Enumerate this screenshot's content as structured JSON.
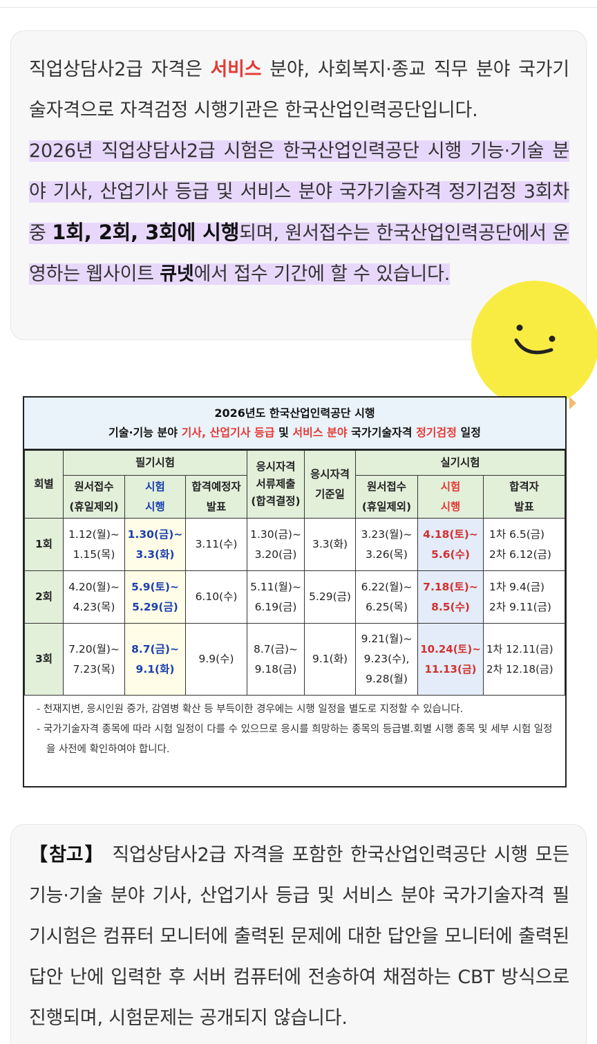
{
  "intro": {
    "p1_a": "직업상담사2급 자격은 ",
    "p1_service": "서비스",
    "p1_b": " 분야, 사회복지·종교 직무 분야 국가기술자격으로 자격검정 시행기관은 한국산업인력공단입니다.",
    "p2_a": "2026년 직업상담사2급 시험은 한국산업인력공단 시행 기능·기술 분야 기사, 산업기사 등급 및 서비스 분야 국가기술자격 정기검정 3회차 중 ",
    "p2_rounds": "1회, 2회, 3회에 시행",
    "p2_b": "되며, 원서접수는 한국산업인력공단에서 운영하는 웹사이트 ",
    "p2_site": "큐넷",
    "p2_c": "에서 접수 기간에 할 수 있습니다."
  },
  "schedule": {
    "title1_a": "2026년도 한국산업인력공단 시행",
    "title2_a": "기술·기능 분야 ",
    "title2_r1": "기사, 산업기사 등급",
    "title2_b": " 및 ",
    "title2_r2": "서비스 분야",
    "title2_c": " 국가기술자격 ",
    "title2_r3": "정기검정",
    "title2_d": " 일정",
    "headers": {
      "round": "회별",
      "written": "필기시험",
      "written_apply": "원서접수\n(휴일제외)",
      "written_exam": "시험\n시행",
      "written_result": "합격예정자\n발표",
      "docs": "응시자격\n서류제출\n(합격결정)",
      "baseline": "응시자격\n기준일",
      "practical": "실기시험",
      "prac_apply": "원서접수\n(휴일제외)",
      "prac_exam": "시험\n시행",
      "prac_result": "합격자\n발표"
    },
    "rows": [
      {
        "round": "1회",
        "written_apply": "1.12(월)~\n1.15(목)",
        "written_exam": "1.30(금)~\n3.3(화)",
        "written_result": "3.11(수)",
        "docs": "1.30(금)~\n3.20(금)",
        "baseline": "3.3(화)",
        "prac_apply": "3.23(월)~\n3.26(목)",
        "prac_exam": "4.18(토)~\n5.6(수)",
        "prac_result": "1차  6.5(금)\n2차 6.12(금)"
      },
      {
        "round": "2회",
        "written_apply": "4.20(월)~\n4.23(목)",
        "written_exam": "5.9(토)~\n5.29(금)",
        "written_result": "6.10(수)",
        "docs": "5.11(월)~\n6.19(금)",
        "baseline": "5.29(금)",
        "prac_apply": "6.22(월)~\n6.25(목)",
        "prac_exam": "7.18(토)~\n8.5(수)",
        "prac_result": "1차  9.4(금)\n2차 9.11(금)"
      },
      {
        "round": "3회",
        "written_apply": "7.20(월)~\n7.23(목)",
        "written_exam": "8.7(금)~\n9.1(화)",
        "written_result": "9.9(수)",
        "docs": "8.7(금)~\n9.18(금)",
        "baseline": "9.1(화)",
        "prac_apply": "9.21(월)~\n9.23(수),\n9.28(월)",
        "prac_exam": "10.24(토)~\n11.13(금)",
        "prac_result": "1차 12.11(금)\n2차 12.18(금)"
      }
    ],
    "notes": [
      "- 천재지변, 응시인원 증가, 감염병 확산 등 부득이한 경우에는 시행 일정을 별도로 지정할 수 있습니다.",
      "- 국가기술자격 종목에 따라 시험 일정이 다를 수 있으므로 응시를 희망하는 종목의 등급별.회별 시행 종목 및 세부 시험 일정을 사전에 확인하여야 합니다."
    ]
  },
  "note": {
    "label": "【참고】",
    "text": " 직업상담사2급 자격을 포함한 한국산업인력공단 시행 모든 기능·기술 분야 기사, 산업기사 등급 및 서비스 분야 국가기술자격 필기시험은 컴퓨터 모니터에 출력된 문제에 대한 답안을 모니터에 출력된 답안 난에 입력한 후 서버 컴퓨터에 전송하여 채점하는 CBT 방식으로 진행되며, 시험문제는 공개되지 않습니다."
  },
  "colors": {
    "highlight": "#e7d8fb",
    "accent_red": "#e53935",
    "table_header_green": "#e2efd9",
    "title_blue": "#eaf3fa",
    "sticker_yellow": "#f8ec43"
  }
}
